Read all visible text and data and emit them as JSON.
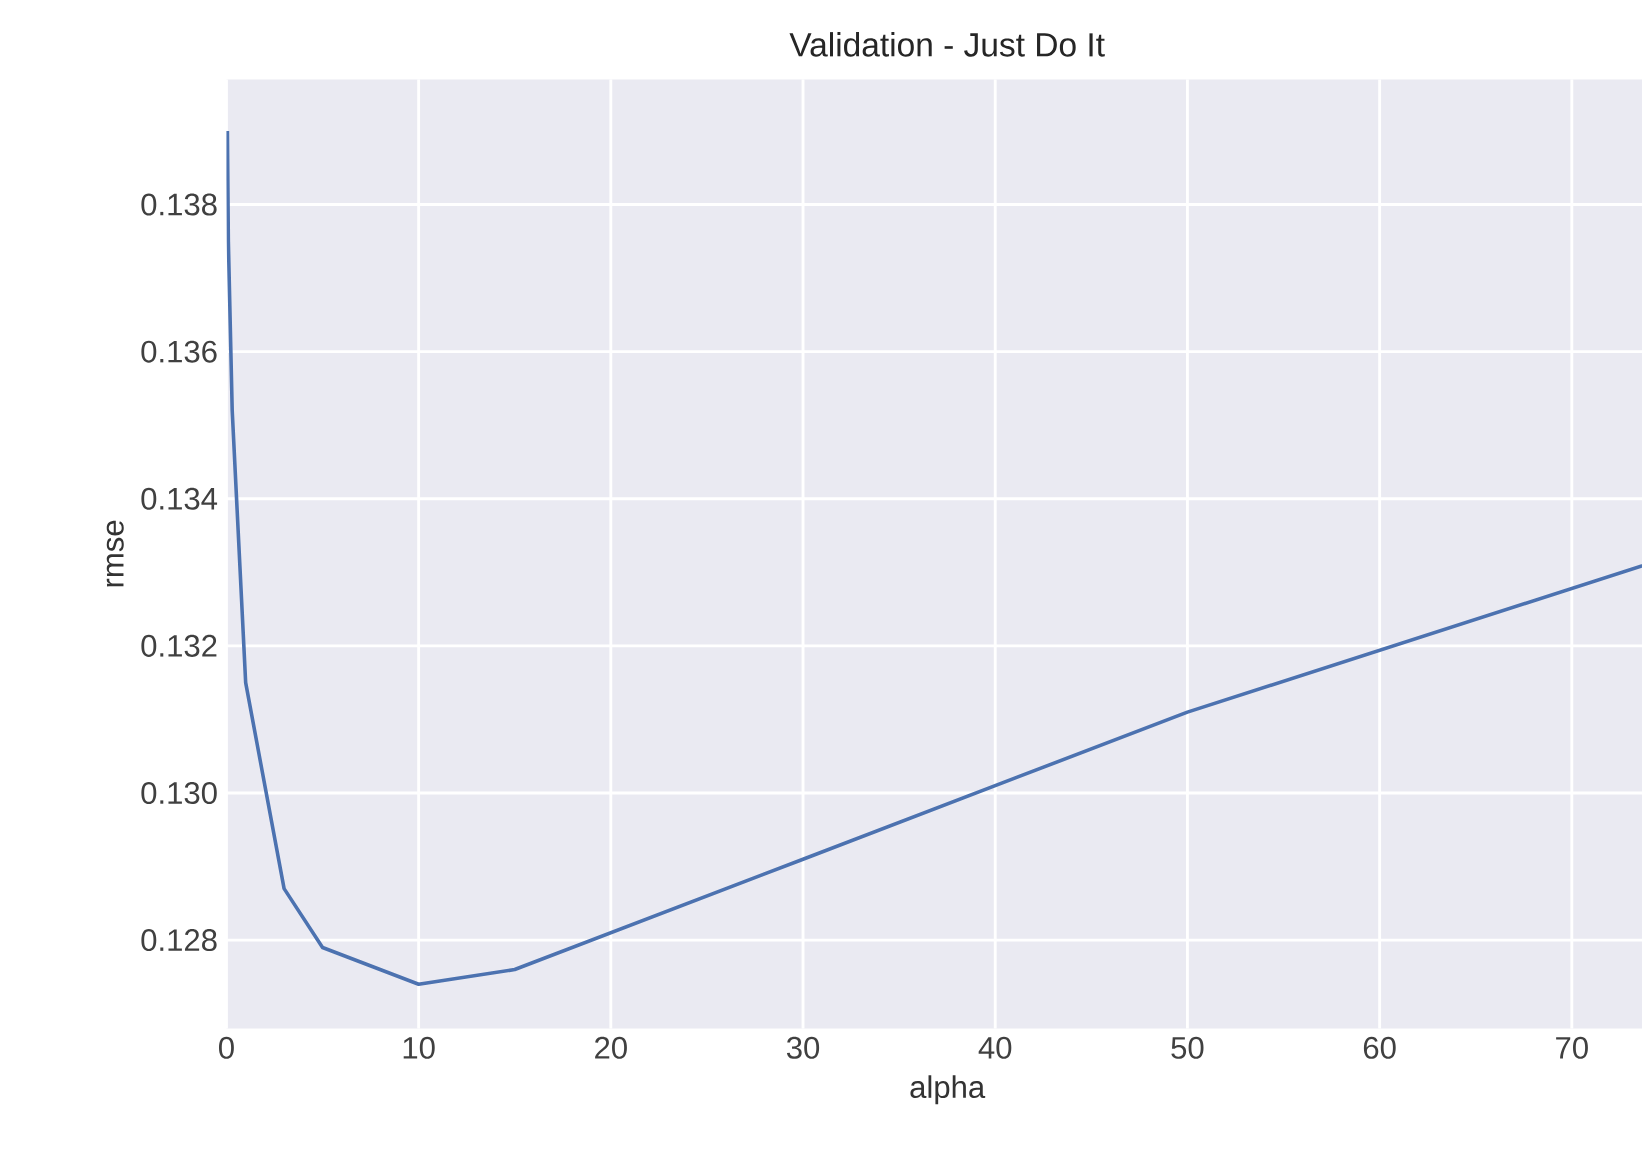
{
  "chart_data": {
    "type": "line",
    "title": "Validation - Just Do It",
    "xlabel": "alpha",
    "ylabel": "rmse",
    "x": [
      0.05,
      0.1,
      0.3,
      1,
      3,
      5,
      10,
      15,
      30,
      50,
      75
    ],
    "series": [
      {
        "color": "#4c72b0",
        "values": [
          0.139,
          0.1375,
          0.1352,
          0.1315,
          0.1287,
          0.1279,
          0.1274,
          0.1276,
          0.1291,
          0.1311,
          0.1332
        ]
      }
    ],
    "xlim": [
      0,
      75
    ],
    "ylim": [
      0.1268,
      0.1397
    ],
    "xticks": [
      0,
      10,
      20,
      30,
      40,
      50,
      60,
      70
    ],
    "yticks": [
      {
        "value": 0.128,
        "label": "0.128"
      },
      {
        "value": 0.13,
        "label": "0.130"
      },
      {
        "value": 0.132,
        "label": "0.132"
      },
      {
        "value": 0.134,
        "label": "0.134"
      },
      {
        "value": 0.136,
        "label": "0.136"
      },
      {
        "value": 0.138,
        "label": "0.138"
      }
    ],
    "grid": true,
    "marker": "none",
    "line_style": "solid"
  }
}
